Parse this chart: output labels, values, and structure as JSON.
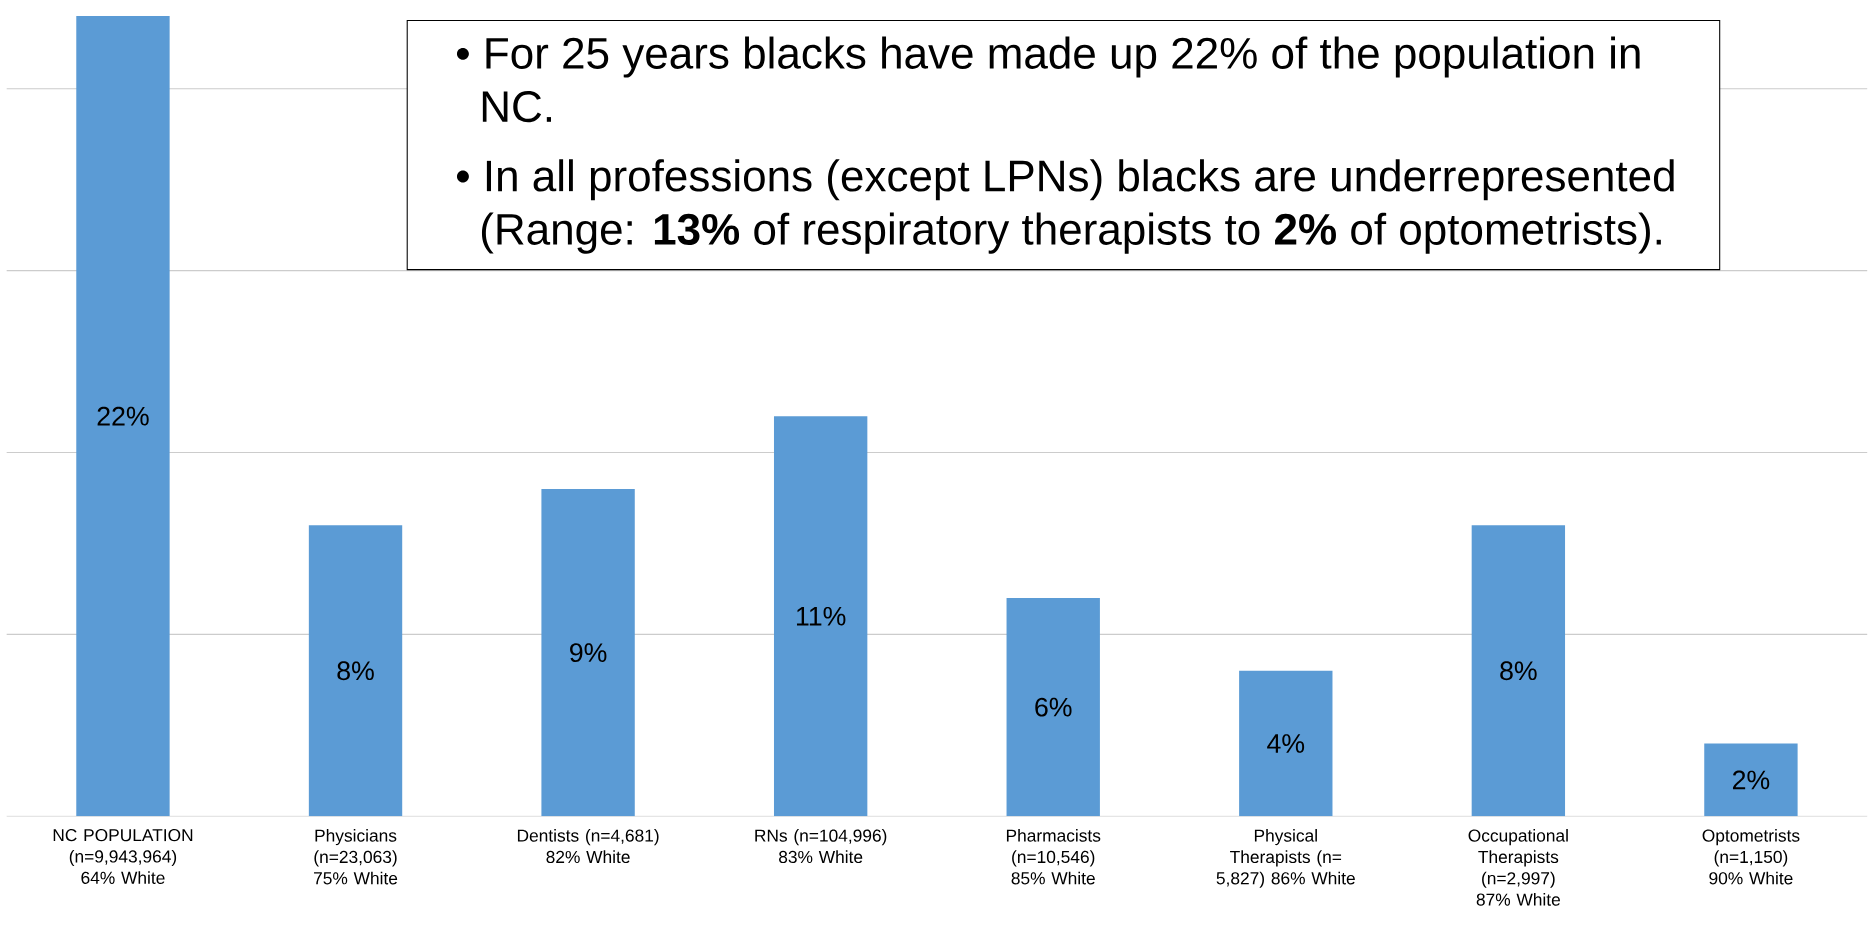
{
  "chart_data": {
    "type": "bar",
    "categories": [
      "NC POPULATION (n=9,943,964) 64% White",
      "Physicians (n=23,063) 75% White",
      "Dentists (n=4,681) 82% White",
      "RNs (n=104,996) 83% White",
      "Pharmacists (n=10,546) 85% White",
      "Physical Therapists (n= 5,827) 86% White",
      "Occupational Therapists (n=2,997) 87% White",
      "Optometrists (n=1,150) 90% White"
    ],
    "values": [
      22,
      8,
      9,
      11,
      6,
      4,
      8,
      2
    ],
    "value_labels": [
      "22%",
      "8%",
      "9%",
      "11%",
      "6%",
      "4%",
      "8%",
      "2%"
    ],
    "color": "#5b9bd5",
    "ylim": [
      0,
      22
    ],
    "yticks": [
      {
        "value": 5,
        "label": null
      },
      {
        "value": 10,
        "label": null
      },
      {
        "value": 15,
        "label": null
      },
      {
        "value": 20,
        "label": null
      }
    ],
    "tick_labels": "x",
    "grid": "y",
    "annotations": [
      "• For 25 years blacks have made up 22% of the population in NC.",
      "• In all professions (except LPNs) blacks are underrepresented (Range: **13%** of respiratory therapists to **2%** of optometrists)."
    ]
  }
}
